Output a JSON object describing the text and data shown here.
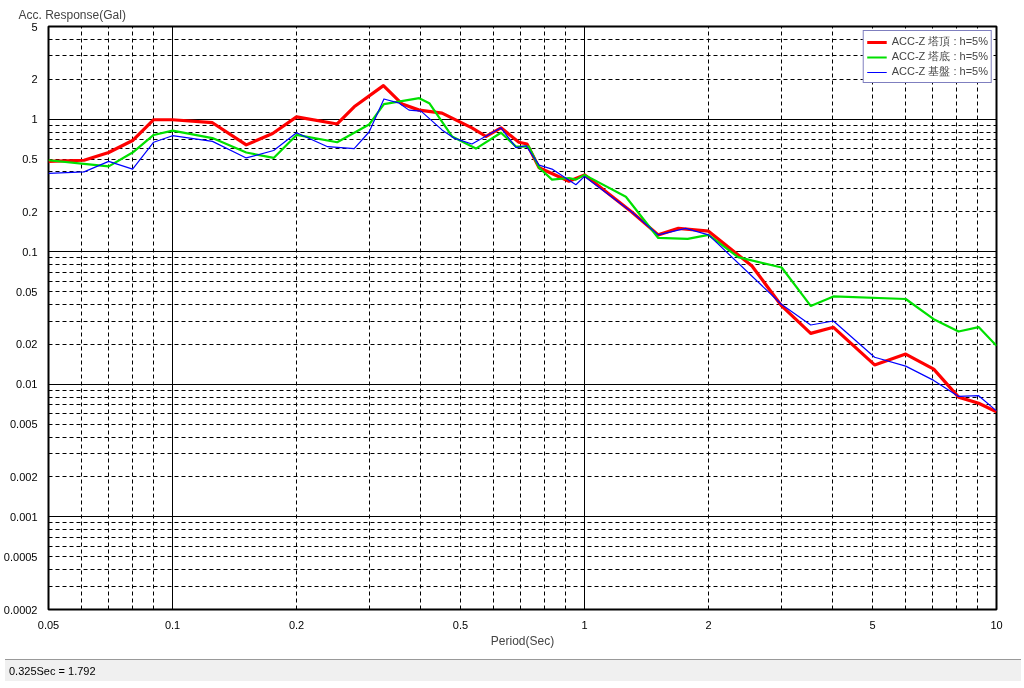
{
  "chart_data": {
    "type": "line",
    "ylabel": "Acc. Response(Gal)",
    "xlabel": "Period(Sec)",
    "log": "xy",
    "grid": true,
    "legend": "top right",
    "line_style": "solid",
    "marker": "none",
    "xlim": [
      0.05,
      10
    ],
    "ylim": [
      0.0002,
      5
    ],
    "xticks": [
      0.05,
      {
        "value": 0.06,
        "label": null
      },
      {
        "value": 0.07,
        "label": null
      },
      {
        "value": 0.08,
        "label": null
      },
      {
        "value": 0.09,
        "label": null
      },
      0.1,
      0.2,
      {
        "value": 0.3,
        "label": null
      },
      {
        "value": 0.4,
        "label": null
      },
      0.5,
      {
        "value": 0.6,
        "label": null
      },
      {
        "value": 0.7,
        "label": null
      },
      {
        "value": 0.8,
        "label": null
      },
      {
        "value": 0.9,
        "label": null
      },
      1,
      2,
      {
        "value": 3,
        "label": null
      },
      {
        "value": 4,
        "label": null
      },
      5,
      {
        "value": 6,
        "label": null
      },
      {
        "value": 7,
        "label": null
      },
      {
        "value": 8,
        "label": null
      },
      {
        "value": 9,
        "label": null
      },
      10
    ],
    "yticks": [
      0.0002,
      {
        "value": 0.0003,
        "label": null
      },
      {
        "value": 0.0004,
        "label": null
      },
      0.0005,
      {
        "value": 0.0006,
        "label": null
      },
      {
        "value": 0.0007,
        "label": null
      },
      {
        "value": 0.0008,
        "label": null
      },
      {
        "value": 0.0009,
        "label": null
      },
      0.001,
      0.002,
      {
        "value": 0.003,
        "label": null
      },
      {
        "value": 0.004,
        "label": null
      },
      0.005,
      {
        "value": 0.006,
        "label": null
      },
      {
        "value": 0.007,
        "label": null
      },
      {
        "value": 0.008,
        "label": null
      },
      {
        "value": 0.009,
        "label": null
      },
      0.01,
      0.02,
      {
        "value": 0.03,
        "label": null
      },
      {
        "value": 0.04,
        "label": null
      },
      0.05,
      {
        "value": 0.06,
        "label": null
      },
      {
        "value": 0.07,
        "label": null
      },
      {
        "value": 0.08,
        "label": null
      },
      {
        "value": 0.09,
        "label": null
      },
      0.1,
      0.2,
      {
        "value": 0.3,
        "label": null
      },
      {
        "value": 0.4,
        "label": null
      },
      0.5,
      {
        "value": 0.6,
        "label": null
      },
      {
        "value": 0.7,
        "label": null
      },
      {
        "value": 0.8,
        "label": null
      },
      {
        "value": 0.9,
        "label": null
      },
      1,
      2,
      {
        "value": 3,
        "label": null
      },
      {
        "value": 4,
        "label": null
      },
      5
    ],
    "annotations": [
      "0.325Sec = 1.792"
    ],
    "series": [
      {
        "name": "ACC-Z 塔頂 : h=5%",
        "color": "#ff0000",
        "x": [
          0.05,
          0.061,
          0.07,
          0.08,
          0.09,
          0.1,
          0.125,
          0.151,
          0.175,
          0.2,
          0.251,
          0.276,
          0.325,
          0.361,
          0.397,
          0.451,
          0.533,
          0.577,
          0.627,
          0.693,
          0.725,
          0.776,
          0.917,
          1.0,
          1.3,
          1.51,
          1.69,
          2.0,
          2.55,
          3.01,
          3.54,
          4.02,
          5.06,
          6.02,
          7.04,
          8.09,
          9.05,
          10
        ],
        "values": [
          0.48,
          0.49,
          0.56,
          0.69,
          0.99,
          0.99,
          0.94,
          0.64,
          0.78,
          1.04,
          0.92,
          1.24,
          1.79,
          1.3,
          1.17,
          1.11,
          0.86,
          0.74,
          0.86,
          0.67,
          0.65,
          0.43,
          0.34,
          0.38,
          0.2,
          0.134,
          0.15,
          0.143,
          0.078,
          0.039,
          0.0242,
          0.0269,
          0.014,
          0.0169,
          0.013,
          0.008,
          0.0072,
          0.0062
        ]
      },
      {
        "name": "ACC-Z 塔底 : h=5%",
        "color": "#00e000",
        "x": [
          0.05,
          0.061,
          0.07,
          0.08,
          0.09,
          0.1,
          0.125,
          0.151,
          0.176,
          0.2,
          0.251,
          0.3,
          0.326,
          0.397,
          0.42,
          0.477,
          0.545,
          0.627,
          0.682,
          0.733,
          0.776,
          0.834,
          0.917,
          0.953,
          1.0,
          1.26,
          1.51,
          1.78,
          2.0,
          2.36,
          3.01,
          3.54,
          4.02,
          6.02,
          7.04,
          8.09,
          9.05,
          10
        ],
        "values": [
          0.49,
          0.46,
          0.44,
          0.56,
          0.76,
          0.82,
          0.72,
          0.56,
          0.51,
          0.76,
          0.67,
          0.91,
          1.3,
          1.44,
          1.32,
          0.74,
          0.6,
          0.79,
          0.62,
          0.62,
          0.43,
          0.35,
          0.36,
          0.35,
          0.38,
          0.26,
          0.127,
          0.125,
          0.134,
          0.091,
          0.076,
          0.039,
          0.046,
          0.044,
          0.031,
          0.025,
          0.027,
          0.0195
        ]
      },
      {
        "name": "ACC-Z 基盤 : h=5%",
        "color": "#0000ff",
        "x": [
          0.05,
          0.061,
          0.07,
          0.08,
          0.09,
          0.1,
          0.125,
          0.151,
          0.176,
          0.2,
          0.238,
          0.276,
          0.3,
          0.326,
          0.355,
          0.375,
          0.401,
          0.451,
          0.482,
          0.533,
          0.627,
          0.682,
          0.721,
          0.776,
          0.834,
          0.953,
          1.0,
          1.3,
          1.51,
          1.76,
          2.0,
          3.01,
          3.54,
          4.02,
          5.06,
          6.02,
          7.04,
          8.09,
          9.05,
          10
        ],
        "values": [
          0.39,
          0.4,
          0.48,
          0.42,
          0.67,
          0.75,
          0.68,
          0.51,
          0.58,
          0.79,
          0.62,
          0.6,
          0.8,
          1.42,
          1.32,
          1.17,
          1.15,
          0.83,
          0.72,
          0.65,
          0.86,
          0.61,
          0.63,
          0.45,
          0.42,
          0.32,
          0.37,
          0.2,
          0.134,
          0.15,
          0.134,
          0.04,
          0.028,
          0.03,
          0.016,
          0.0137,
          0.0107,
          0.0081,
          0.0082,
          0.0063
        ]
      }
    ]
  }
}
